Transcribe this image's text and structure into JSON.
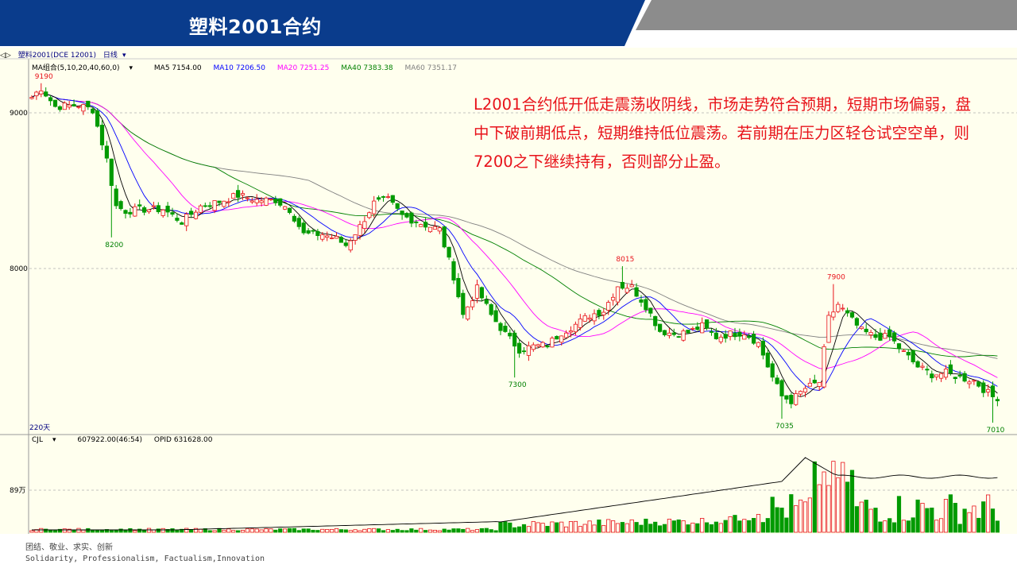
{
  "header": {
    "title": "塑料2001合约"
  },
  "toolbar": {
    "symbol": "塑料2001(DCE 12001)",
    "period": "日线",
    "days": "220天"
  },
  "ma_legend": {
    "group": "MA组合(5,10,20,40,60,0)",
    "ma5": "MA5 7154.00",
    "ma10": "MA10 7206.50",
    "ma20": "MA20 7251.25",
    "ma40": "MA40 7383.38",
    "ma60": "MA60 7351.17"
  },
  "volume_legend": {
    "name": "CJL",
    "vol": "607922.00(46:54)",
    "opid": "OPID 631628.00"
  },
  "annotation": "L2001合约低开低走震荡收阴线，市场走势符合预期，短期市场偏弱，盘中下破前期低点，短期维持低位震荡。若前期在压力区轻仓试空空单，则7200之下继续持有，否则部分止盈。",
  "footer": {
    "line1": "团结、敬业、求实、创新",
    "line2": "Solidarity, Professionalism, Factualism,Innovation"
  },
  "colors": {
    "up": "#e8121a",
    "down": "#009a00",
    "ma5": "#000000",
    "ma10": "#0000ff",
    "ma20": "#ff00ff",
    "ma40": "#008000",
    "ma60": "#808080",
    "banner": "#0a3c8c"
  },
  "chart_data": {
    "type": "candlestick",
    "y_ticks": [
      "9000",
      "8000"
    ],
    "volume_tick": "89万",
    "ylim": [
      6950,
      9250
    ],
    "annotations": [
      {
        "label": "9190",
        "index": 2,
        "value": 9190
      },
      {
        "label": "8200",
        "index": 17,
        "value": 8200
      },
      {
        "label": "8015",
        "index": 126,
        "value": 8015
      },
      {
        "label": "7300",
        "index": 103,
        "value": 7300
      },
      {
        "label": "7900",
        "index": 171,
        "value": 7900
      },
      {
        "label": "7035",
        "index": 160,
        "value": 7035
      },
      {
        "label": "7010",
        "index": 205,
        "value": 7010
      }
    ],
    "anchors": [
      [
        0,
        9100
      ],
      [
        2,
        9160
      ],
      [
        5,
        9040
      ],
      [
        10,
        9050
      ],
      [
        13,
        9020
      ],
      [
        16,
        8700
      ],
      [
        18,
        8400
      ],
      [
        20,
        8370
      ],
      [
        24,
        8380
      ],
      [
        28,
        8380
      ],
      [
        32,
        8300
      ],
      [
        36,
        8400
      ],
      [
        40,
        8430
      ],
      [
        44,
        8470
      ],
      [
        48,
        8440
      ],
      [
        52,
        8440
      ],
      [
        55,
        8380
      ],
      [
        58,
        8220
      ],
      [
        62,
        8220
      ],
      [
        65,
        8190
      ],
      [
        67,
        8150
      ],
      [
        70,
        8270
      ],
      [
        73,
        8420
      ],
      [
        76,
        8440
      ],
      [
        79,
        8340
      ],
      [
        83,
        8290
      ],
      [
        87,
        8250
      ],
      [
        90,
        7950
      ],
      [
        92,
        7700
      ],
      [
        95,
        7870
      ],
      [
        98,
        7700
      ],
      [
        101,
        7580
      ],
      [
        104,
        7480
      ],
      [
        107,
        7500
      ],
      [
        110,
        7510
      ],
      [
        113,
        7590
      ],
      [
        116,
        7640
      ],
      [
        119,
        7700
      ],
      [
        122,
        7730
      ],
      [
        125,
        7890
      ],
      [
        128,
        7880
      ],
      [
        131,
        7760
      ],
      [
        134,
        7600
      ],
      [
        137,
        7580
      ],
      [
        140,
        7590
      ],
      [
        143,
        7630
      ],
      [
        146,
        7560
      ],
      [
        149,
        7580
      ],
      [
        152,
        7590
      ],
      [
        155,
        7520
      ],
      [
        158,
        7300
      ],
      [
        160,
        7180
      ],
      [
        162,
        7150
      ],
      [
        165,
        7230
      ],
      [
        168,
        7270
      ],
      [
        170,
        7680
      ],
      [
        172,
        7770
      ],
      [
        174,
        7700
      ],
      [
        177,
        7600
      ],
      [
        180,
        7560
      ],
      [
        183,
        7560
      ],
      [
        186,
        7460
      ],
      [
        189,
        7370
      ],
      [
        192,
        7320
      ],
      [
        195,
        7330
      ],
      [
        198,
        7300
      ],
      [
        201,
        7280
      ],
      [
        204,
        7200
      ],
      [
        206,
        7150
      ]
    ],
    "ma_end_values": {
      "MA5": 7154.0,
      "MA10": 7206.5,
      "MA20": 7251.25,
      "MA40": 7383.38,
      "MA60": 7351.17
    }
  }
}
